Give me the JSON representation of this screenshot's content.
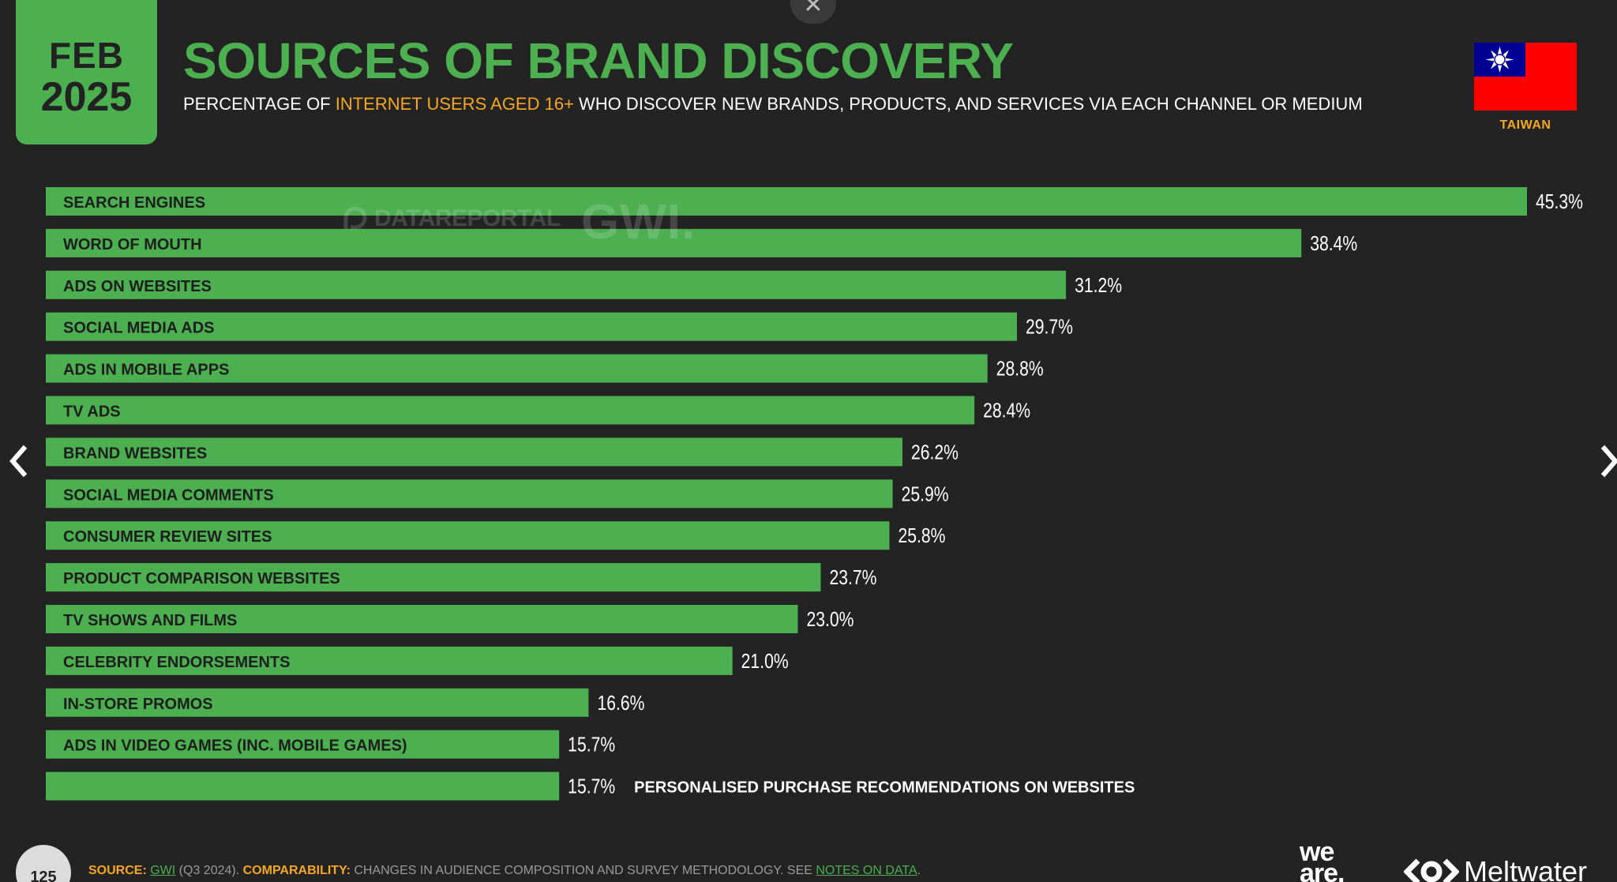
{
  "header": {
    "month": "FEB",
    "year": "2025",
    "title": "SOURCES OF BRAND DISCOVERY",
    "subtitle_pre": "PERCENTAGE OF ",
    "subtitle_highlight": "INTERNET USERS AGED 16+",
    "subtitle_post": " WHO DISCOVER NEW BRANDS, PRODUCTS, AND SERVICES VIA EACH CHANNEL OR MEDIUM",
    "country": "TAIWAN"
  },
  "colors": {
    "background": "#232323",
    "bar": "#4caf50",
    "accent": "#f5a623",
    "flag_red": "#fe0000",
    "flag_blue": "#000095"
  },
  "watermark": {
    "datareportal": "DATAREPORTAL",
    "gwi": "GWI."
  },
  "chart_data": {
    "type": "bar",
    "orientation": "horizontal",
    "title": "SOURCES OF BRAND DISCOVERY",
    "value_suffix": "%",
    "xlim": [
      0,
      45.3
    ],
    "categories": [
      "SEARCH ENGINES",
      "WORD OF MOUTH",
      "ADS ON WEBSITES",
      "SOCIAL MEDIA ADS",
      "ADS IN MOBILE APPS",
      "TV ADS",
      "BRAND WEBSITES",
      "SOCIAL MEDIA COMMENTS",
      "CONSUMER REVIEW SITES",
      "PRODUCT COMPARISON WEBSITES",
      "TV SHOWS AND FILMS",
      "CELEBRITY ENDORSEMENTS",
      "IN-STORE PROMOS",
      "ADS IN VIDEO GAMES (INC. MOBILE GAMES)",
      "PERSONALISED PURCHASE RECOMMENDATIONS ON WEBSITES"
    ],
    "values": [
      45.3,
      38.4,
      31.2,
      29.7,
      28.8,
      28.4,
      26.2,
      25.9,
      25.8,
      23.7,
      23.0,
      21.0,
      16.6,
      15.7,
      15.7
    ],
    "value_labels": [
      "45.3%",
      "38.4%",
      "31.2%",
      "29.7%",
      "28.8%",
      "28.4%",
      "26.2%",
      "25.9%",
      "25.8%",
      "23.7%",
      "23.0%",
      "21.0%",
      "16.6%",
      "15.7%",
      "15.7%"
    ],
    "outside_label_index": 14
  },
  "footer": {
    "page_number": "125",
    "source_label": "SOURCE:",
    "source_link": "GWI",
    "source_rest": " (Q3 2024). ",
    "comparability_label": "COMPARABILITY:",
    "comparability_text": " CHANGES IN AUDIENCE COMPOSITION AND SURVEY METHODOLOGY. SEE ",
    "notes_link": "NOTES ON DATA",
    "period": ".",
    "weare_line1": "we",
    "weare_line2": "are.",
    "meltwater": "Meltwater"
  },
  "controls": {
    "close": "✕"
  }
}
